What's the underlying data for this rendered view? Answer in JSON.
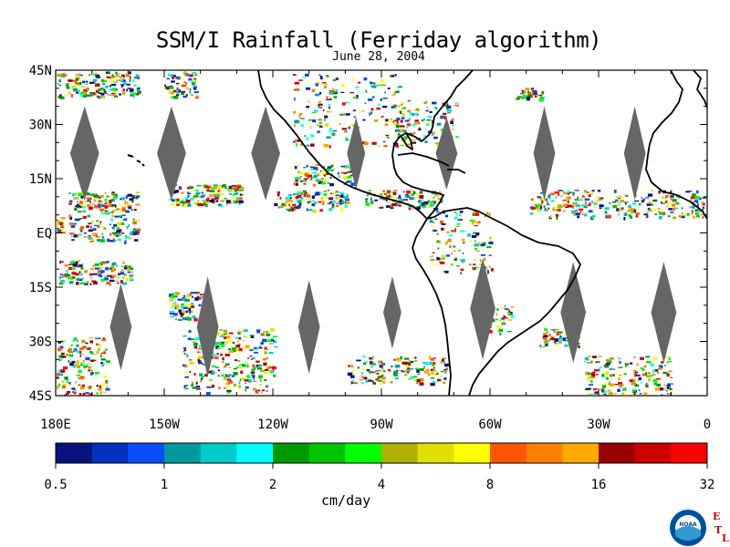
{
  "title": "SSM/I Rainfall (Ferriday algorithm)",
  "subtitle": "June 28, 2004",
  "map": {
    "lat_labels": [
      "45N",
      "30N",
      "15N",
      "EQ",
      "15S",
      "30S",
      "45S"
    ],
    "lon_labels": [
      "180E",
      "150W",
      "120W",
      "90W",
      "60W",
      "30W",
      "0"
    ],
    "lon_range": [
      -180,
      0
    ],
    "lat_range": [
      -45,
      45
    ],
    "swath_gap_color": "#666666",
    "land_outline_color": "#000000"
  },
  "colorbar": {
    "colors": [
      "#08127a",
      "#0032bf",
      "#0a4cff",
      "#00999e",
      "#00cccc",
      "#00ffff",
      "#009900",
      "#00c400",
      "#00ff00",
      "#b0b000",
      "#e0e000",
      "#ffff00",
      "#ff5500",
      "#ff8000",
      "#ffaa00",
      "#990000",
      "#cc0000",
      "#ff0000"
    ],
    "tick_labels": [
      "0.5",
      "1",
      "2",
      "4",
      "8",
      "16",
      "32"
    ],
    "units": "cm/day"
  },
  "logo": {
    "text": "NOAA",
    "side_letters": [
      "E",
      "T",
      "L"
    ],
    "color": "#0050a0",
    "letter_color": "#cc0000"
  }
}
